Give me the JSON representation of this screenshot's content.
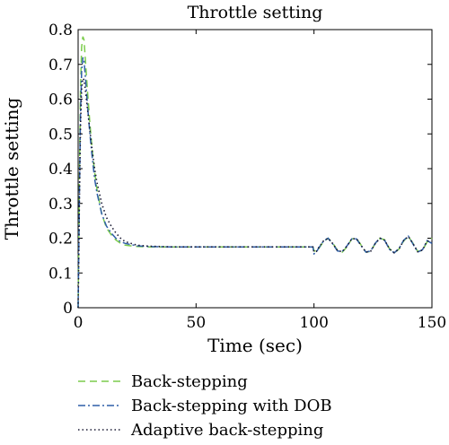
{
  "chart_data": {
    "type": "line",
    "title": "Throttle setting",
    "xlabel": "Time (sec)",
    "ylabel": "Throttle setting",
    "xlim": [
      0,
      150
    ],
    "ylim": [
      0,
      0.8
    ],
    "x_ticks": [
      0,
      50,
      100,
      150
    ],
    "x_tick_labels": [
      "0",
      "50",
      "100",
      "150"
    ],
    "y_ticks": [
      0,
      0.1,
      0.2,
      0.3,
      0.4,
      0.5,
      0.6,
      0.7,
      0.8
    ],
    "y_tick_labels": [
      "0",
      "0.1",
      "0.2",
      "0.3",
      "0.4",
      "0.5",
      "0.6",
      "0.7",
      "0.8"
    ],
    "grid": false,
    "legend_position": "below",
    "series": [
      {
        "name": "Back-stepping",
        "color": "#7ccc4c",
        "dash": "dashed",
        "x": [
          0,
          0.5,
          1,
          1.5,
          2,
          2.5,
          3,
          4,
          5,
          6,
          7,
          8,
          10,
          12,
          14,
          16,
          18,
          20,
          25,
          30,
          40,
          50,
          60,
          70,
          80,
          90,
          99.5,
          100,
          101,
          102,
          104,
          106,
          108,
          110,
          112,
          114,
          116,
          118,
          120,
          122,
          124,
          126,
          128,
          130,
          132,
          134,
          136,
          138,
          140,
          142,
          144,
          146,
          148,
          150
        ],
        "y": [
          0.0,
          0.35,
          0.62,
          0.75,
          0.78,
          0.77,
          0.72,
          0.62,
          0.53,
          0.45,
          0.39,
          0.34,
          0.27,
          0.23,
          0.21,
          0.195,
          0.185,
          0.18,
          0.176,
          0.175,
          0.175,
          0.175,
          0.175,
          0.175,
          0.175,
          0.175,
          0.175,
          0.165,
          0.16,
          0.17,
          0.19,
          0.2,
          0.185,
          0.165,
          0.16,
          0.175,
          0.198,
          0.2,
          0.18,
          0.16,
          0.162,
          0.185,
          0.2,
          0.195,
          0.17,
          0.158,
          0.168,
          0.192,
          0.205,
          0.185,
          0.162,
          0.165,
          0.19,
          0.2
        ]
      },
      {
        "name": "Back-stepping with DOB",
        "color": "#2f5fa8",
        "dash": "dashdot",
        "x": [
          0,
          0.5,
          1,
          1.5,
          2,
          2.5,
          3,
          4,
          5,
          6,
          7,
          8,
          10,
          12,
          14,
          16,
          18,
          20,
          25,
          30,
          40,
          50,
          60,
          70,
          80,
          90,
          99.5,
          100,
          101,
          102,
          104,
          106,
          108,
          110,
          112,
          114,
          116,
          118,
          120,
          122,
          124,
          126,
          128,
          130,
          132,
          134,
          136,
          138,
          140,
          142,
          144,
          146,
          148,
          150
        ],
        "y": [
          0.0,
          0.3,
          0.55,
          0.68,
          0.72,
          0.71,
          0.67,
          0.58,
          0.5,
          0.43,
          0.37,
          0.33,
          0.27,
          0.235,
          0.215,
          0.2,
          0.19,
          0.185,
          0.178,
          0.176,
          0.175,
          0.175,
          0.175,
          0.175,
          0.175,
          0.175,
          0.175,
          0.155,
          0.16,
          0.172,
          0.192,
          0.2,
          0.183,
          0.163,
          0.162,
          0.178,
          0.198,
          0.198,
          0.178,
          0.16,
          0.163,
          0.186,
          0.2,
          0.193,
          0.168,
          0.158,
          0.17,
          0.194,
          0.206,
          0.183,
          0.16,
          0.167,
          0.193,
          0.185
        ]
      },
      {
        "name": "Adaptive back-stepping",
        "color": "#1a1a33",
        "dash": "dotted",
        "x": [
          0,
          0.5,
          1,
          1.5,
          2,
          2.5,
          3,
          4,
          5,
          6,
          7,
          8,
          10,
          12,
          14,
          16,
          18,
          20,
          25,
          30,
          40,
          50,
          60,
          70,
          80,
          90,
          99.5,
          100,
          101,
          102,
          104,
          106,
          108,
          110,
          112,
          114,
          116,
          118,
          120,
          122,
          124,
          126,
          128,
          130,
          132,
          134,
          136,
          138,
          140,
          142,
          144,
          146,
          148,
          150
        ],
        "y": [
          0.0,
          0.28,
          0.52,
          0.63,
          0.66,
          0.655,
          0.63,
          0.57,
          0.51,
          0.45,
          0.4,
          0.36,
          0.3,
          0.26,
          0.235,
          0.215,
          0.2,
          0.19,
          0.18,
          0.177,
          0.175,
          0.175,
          0.175,
          0.175,
          0.175,
          0.175,
          0.175,
          0.16,
          0.162,
          0.173,
          0.192,
          0.2,
          0.184,
          0.164,
          0.161,
          0.177,
          0.198,
          0.199,
          0.179,
          0.16,
          0.162,
          0.185,
          0.2,
          0.194,
          0.169,
          0.158,
          0.169,
          0.193,
          0.205,
          0.184,
          0.161,
          0.166,
          0.192,
          0.19
        ]
      }
    ]
  }
}
